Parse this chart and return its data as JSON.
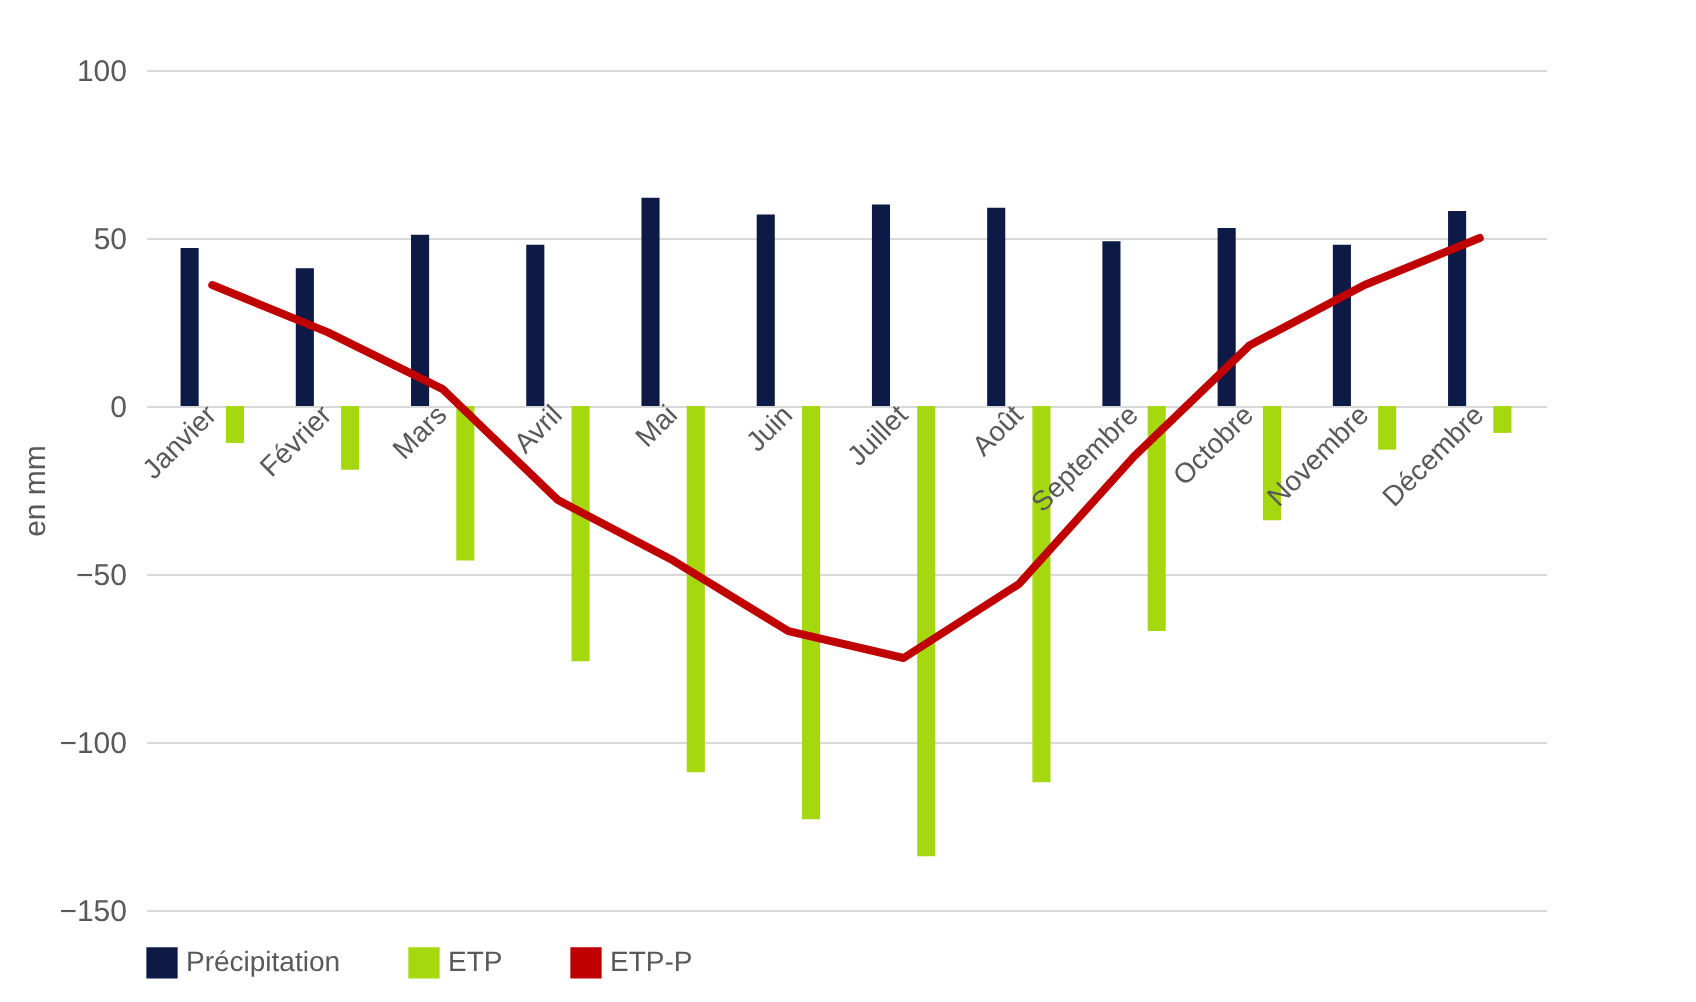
{
  "chart_data": {
    "type": "bar",
    "ylabel": "en mm",
    "categories": [
      "Janvier",
      "Février",
      "Mars",
      "Avril",
      "Mai",
      "Juin",
      "Juillet",
      "Août",
      "Septembre",
      "Octobre",
      "Novembre",
      "Décembre"
    ],
    "series": [
      {
        "name": "Précipitation",
        "color": "#0d1a45",
        "values": [
          47,
          41,
          51,
          48,
          62,
          57,
          60,
          59,
          49,
          53,
          48,
          58
        ]
      },
      {
        "name": "ETP",
        "color": "#a5d80f",
        "values": [
          -11,
          -19,
          -46,
          -76,
          -109,
          -123,
          -134,
          -112,
          -67,
          -34,
          -13,
          -8
        ]
      },
      {
        "name": "ETP-P",
        "type": "line",
        "color": "#c00000",
        "values": [
          36,
          22,
          5,
          -28,
          -46,
          -67,
          -75,
          -53,
          -15,
          18,
          36,
          50
        ]
      }
    ],
    "ylim": [
      -150,
      100
    ],
    "yticks": [
      -150,
      -100,
      -50,
      0,
      50,
      100
    ],
    "grid": "y",
    "legend": "bottom",
    "marker": "none",
    "line_style": "solid"
  }
}
